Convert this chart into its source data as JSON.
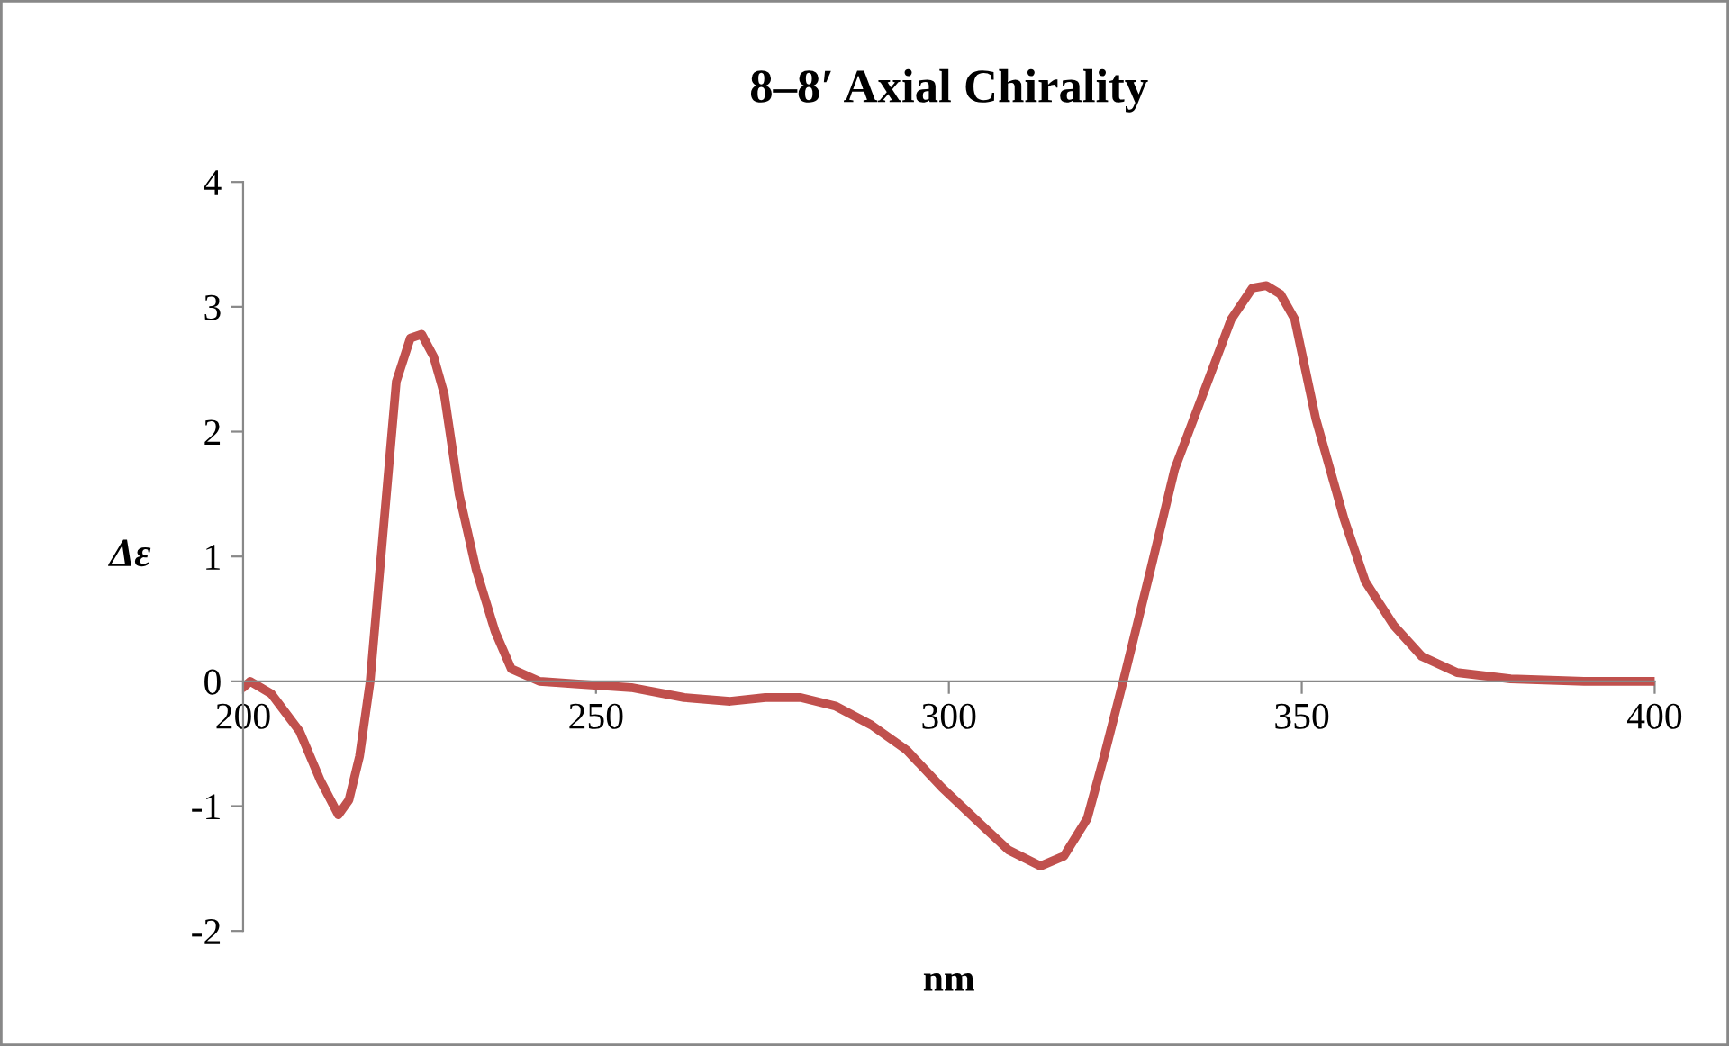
{
  "chart_data": {
    "type": "line",
    "title": "8–8′ Axial Chirality",
    "xlabel": "nm",
    "ylabel": "Δε",
    "xlim": [
      200,
      400
    ],
    "xticks": [
      200,
      250,
      300,
      350,
      400
    ],
    "ylim": [
      -2,
      4
    ],
    "yticks": [
      -2,
      -1,
      0,
      1,
      2,
      3,
      4
    ],
    "grid": false,
    "legend": false,
    "marker": "none",
    "line_style": "solid",
    "series": [
      {
        "color": "#c0504d",
        "x": [
          200,
          201,
          204,
          208,
          211,
          213.5,
          215,
          216.5,
          218,
          220,
          221.7,
          223.7,
          225.3,
          227,
          228.5,
          230.6,
          233,
          235.7,
          238,
          242,
          247,
          255,
          262.5,
          269,
          274,
          279,
          284,
          289,
          294,
          299,
          304.6,
          308.4,
          313,
          316.3,
          319.6,
          322,
          324.7,
          328.6,
          332,
          336,
          340,
          343,
          345,
          347,
          349,
          352,
          356,
          359,
          363,
          367,
          372,
          379.6,
          390,
          400
        ],
        "values": [
          -0.05,
          0,
          -0.1,
          -0.4,
          -0.8,
          -1.07,
          -0.95,
          -0.6,
          0,
          1.3,
          2.4,
          2.75,
          2.78,
          2.6,
          2.3,
          1.5,
          0.9,
          0.4,
          0.1,
          0,
          -0.02,
          -0.05,
          -0.13,
          -0.16,
          -0.13,
          -0.13,
          -0.2,
          -0.35,
          -0.55,
          -0.85,
          -1.15,
          -1.35,
          -1.48,
          -1.4,
          -1.1,
          -0.6,
          0,
          0.9,
          1.7,
          2.3,
          2.9,
          3.15,
          3.17,
          3.1,
          2.9,
          2.1,
          1.3,
          0.8,
          0.45,
          0.2,
          0.07,
          0.02,
          0,
          0
        ]
      }
    ]
  }
}
